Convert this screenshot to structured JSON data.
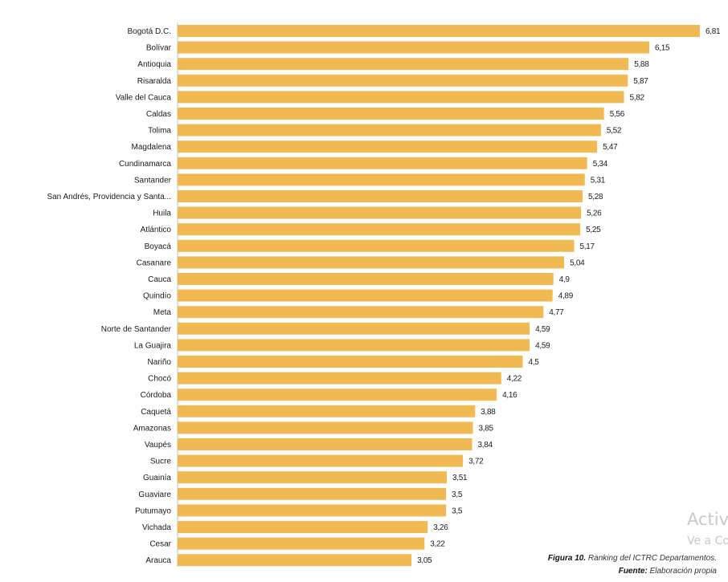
{
  "chart_data": {
    "type": "bar",
    "orientation": "horizontal",
    "categories": [
      "Bogotá D.C.",
      "Bolívar",
      "Antioquia",
      "Risaralda",
      "Valle del Cauca",
      "Caldas",
      "Tolima",
      "Magdalena",
      "Cundinamarca",
      "Santander",
      "San Andrés, Providencia y Santa...",
      "Huila",
      "Atlántico",
      "Boyacá",
      "Casanare",
      "Cauca",
      "Quindío",
      "Meta",
      "Norte de Santander",
      "La Guajira",
      "Nariño",
      "Chocó",
      "Córdoba",
      "Caquetá",
      "Amazonas",
      "Vaupés",
      "Sucre",
      "Guainía",
      "Guaviare",
      "Putumayo",
      "Vichada",
      "Cesar",
      "Arauca"
    ],
    "values": [
      6.81,
      6.15,
      5.88,
      5.87,
      5.82,
      5.56,
      5.52,
      5.47,
      5.34,
      5.31,
      5.28,
      5.26,
      5.25,
      5.17,
      5.04,
      4.9,
      4.89,
      4.77,
      4.59,
      4.59,
      4.5,
      4.22,
      4.16,
      3.88,
      3.85,
      3.84,
      3.72,
      3.51,
      3.5,
      3.5,
      3.26,
      3.22,
      3.05
    ],
    "value_labels": [
      "6,81",
      "6,15",
      "5,88",
      "5,87",
      "5,82",
      "5,56",
      "5,52",
      "5,47",
      "5,34",
      "5,31",
      "5,28",
      "5,26",
      "5,25",
      "5,17",
      "5,04",
      "4,9",
      "4,89",
      "4,77",
      "4,59",
      "4,59",
      "4,5",
      "4,22",
      "4,16",
      "3,88",
      "3,85",
      "3,84",
      "3,72",
      "3,51",
      "3,5",
      "3,5",
      "3,26",
      "3,22",
      "3,05"
    ],
    "xlim": [
      0,
      6.81
    ],
    "title": "",
    "xlabel": "",
    "ylabel": ""
  },
  "caption": {
    "figure_label": "Figura 10.",
    "figure_text": " Ranking del ICTRC Departamentos.",
    "source_label": "Fuente:",
    "source_text": " Elaboración propia"
  },
  "watermark": {
    "line1": "Activar Windows",
    "line2": "Ve a Configuración"
  },
  "colors": {
    "bar": "#F0B952",
    "axis": "#bfbfbf",
    "text": "#1a1a1a"
  }
}
